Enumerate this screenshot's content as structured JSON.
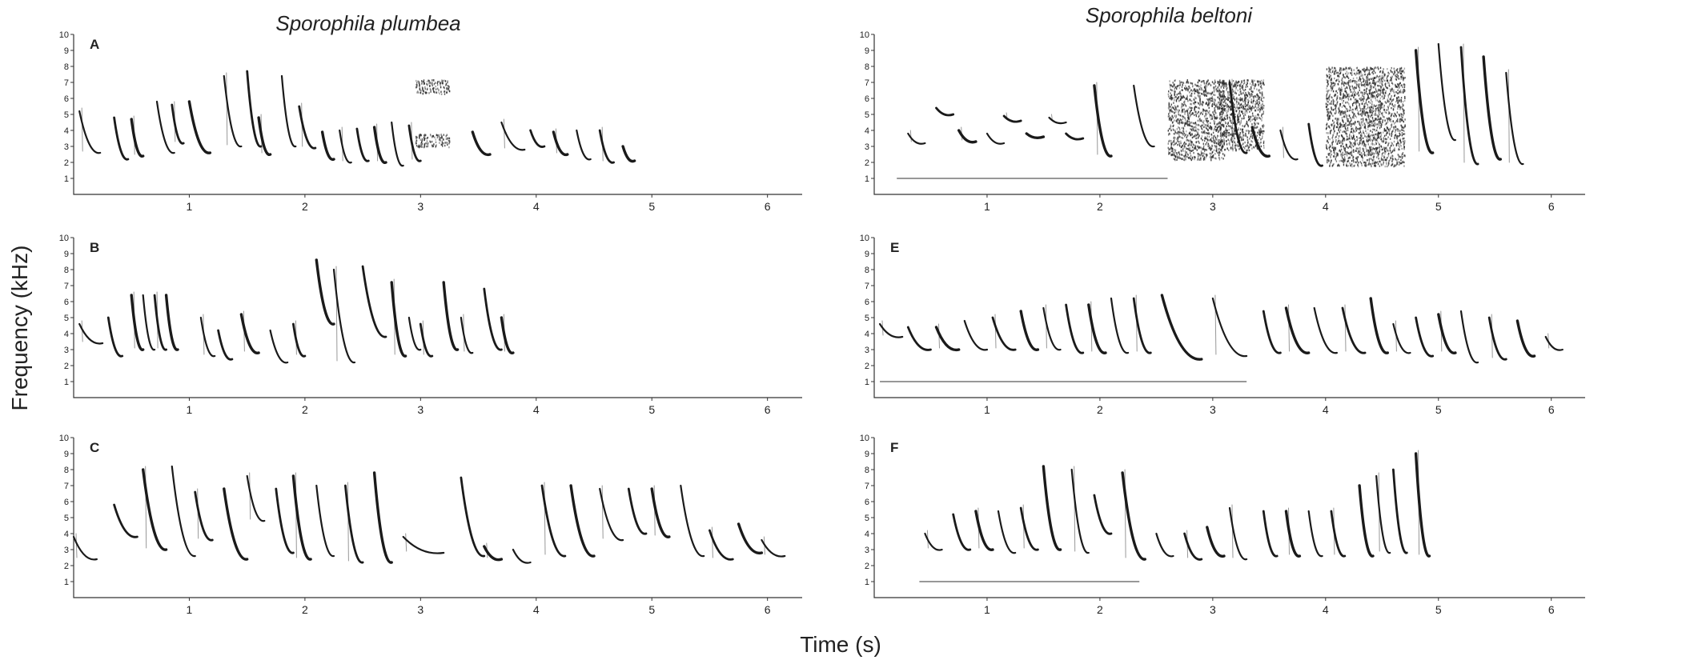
{
  "figure": {
    "columns": [
      {
        "title": "Sporophila plumbea"
      },
      {
        "title": "Sporophila beltoni"
      }
    ],
    "ylabel": "Frequency (kHz)",
    "xlabel": "Time (s)"
  },
  "chart_data": {
    "type": "spectrogram",
    "x_unit": "s",
    "y_unit": "kHz",
    "y_ticks": [
      "1",
      "2",
      "3",
      "4",
      "5",
      "6",
      "7",
      "8",
      "9",
      "10"
    ],
    "x_ticks": [
      "1",
      "2",
      "3",
      "4",
      "5",
      "6"
    ],
    "ylim": [
      0,
      10
    ],
    "xlim": [
      0,
      6.3
    ],
    "panels": [
      {
        "label": "A",
        "species": "Sporophila plumbea",
        "song_end_s": 4.85,
        "notes": [
          {
            "t": 0.05,
            "f0": 5.2,
            "f1": 2.6,
            "w": 0.18
          },
          {
            "t": 0.35,
            "f0": 4.8,
            "f1": 2.2,
            "w": 0.12
          },
          {
            "t": 0.5,
            "f0": 4.7,
            "f1": 2.4,
            "w": 0.1
          },
          {
            "t": 0.72,
            "f0": 5.8,
            "f1": 2.6,
            "w": 0.15
          },
          {
            "t": 0.85,
            "f0": 5.6,
            "f1": 3.2,
            "w": 0.1
          },
          {
            "t": 1.0,
            "f0": 5.8,
            "f1": 2.6,
            "w": 0.18
          },
          {
            "t": 1.3,
            "f0": 7.4,
            "f1": 3.0,
            "w": 0.15
          },
          {
            "t": 1.5,
            "f0": 7.7,
            "f1": 3.0,
            "w": 0.12
          },
          {
            "t": 1.6,
            "f0": 4.8,
            "f1": 2.5,
            "w": 0.1
          },
          {
            "t": 1.8,
            "f0": 7.4,
            "f1": 3.0,
            "w": 0.12
          },
          {
            "t": 1.95,
            "f0": 5.5,
            "f1": 2.9,
            "w": 0.14
          },
          {
            "t": 2.15,
            "f0": 3.9,
            "f1": 2.2,
            "w": 0.1
          },
          {
            "t": 2.3,
            "f0": 4.0,
            "f1": 2.0,
            "w": 0.1
          },
          {
            "t": 2.45,
            "f0": 4.1,
            "f1": 2.1,
            "w": 0.1
          },
          {
            "t": 2.6,
            "f0": 4.2,
            "f1": 2.0,
            "w": 0.1
          },
          {
            "t": 2.75,
            "f0": 4.5,
            "f1": 1.8,
            "w": 0.1
          },
          {
            "t": 2.9,
            "f0": 4.3,
            "f1": 2.1,
            "w": 0.1
          },
          {
            "t": 3.45,
            "f0": 3.9,
            "f1": 2.5,
            "w": 0.15
          },
          {
            "t": 3.7,
            "f0": 4.5,
            "f1": 2.8,
            "w": 0.2
          },
          {
            "t": 3.95,
            "f0": 4.0,
            "f1": 3.0,
            "w": 0.12
          },
          {
            "t": 4.15,
            "f0": 3.9,
            "f1": 2.5,
            "w": 0.12
          },
          {
            "t": 4.35,
            "f0": 4.0,
            "f1": 2.2,
            "w": 0.12
          },
          {
            "t": 4.55,
            "f0": 4.0,
            "f1": 2.0,
            "w": 0.12
          },
          {
            "t": 4.75,
            "f0": 3.0,
            "f1": 2.1,
            "w": 0.1
          }
        ]
      },
      {
        "label": "B",
        "species": "Sporophila plumbea",
        "song_end_s": 3.8,
        "notes": [
          {
            "t": 0.05,
            "f0": 4.6,
            "f1": 3.4,
            "w": 0.2
          },
          {
            "t": 0.3,
            "f0": 5.0,
            "f1": 2.6,
            "w": 0.12
          },
          {
            "t": 0.5,
            "f0": 6.4,
            "f1": 3.0,
            "w": 0.1
          },
          {
            "t": 0.6,
            "f0": 6.4,
            "f1": 3.0,
            "w": 0.1
          },
          {
            "t": 0.7,
            "f0": 6.4,
            "f1": 3.0,
            "w": 0.1
          },
          {
            "t": 0.8,
            "f0": 6.4,
            "f1": 3.0,
            "w": 0.1
          },
          {
            "t": 1.1,
            "f0": 5.0,
            "f1": 2.6,
            "w": 0.12
          },
          {
            "t": 1.25,
            "f0": 4.2,
            "f1": 2.4,
            "w": 0.12
          },
          {
            "t": 1.45,
            "f0": 5.2,
            "f1": 2.8,
            "w": 0.15
          },
          {
            "t": 1.7,
            "f0": 4.2,
            "f1": 2.2,
            "w": 0.15
          },
          {
            "t": 1.9,
            "f0": 4.6,
            "f1": 2.6,
            "w": 0.1
          },
          {
            "t": 2.1,
            "f0": 8.6,
            "f1": 4.6,
            "w": 0.15
          },
          {
            "t": 2.25,
            "f0": 8.0,
            "f1": 2.2,
            "w": 0.18
          },
          {
            "t": 2.5,
            "f0": 8.2,
            "f1": 3.8,
            "w": 0.2
          },
          {
            "t": 2.75,
            "f0": 7.2,
            "f1": 2.6,
            "w": 0.12
          },
          {
            "t": 2.9,
            "f0": 5.0,
            "f1": 3.0,
            "w": 0.1
          },
          {
            "t": 3.0,
            "f0": 4.6,
            "f1": 2.6,
            "w": 0.1
          },
          {
            "t": 3.2,
            "f0": 7.2,
            "f1": 3.0,
            "w": 0.12
          },
          {
            "t": 3.35,
            "f0": 5.0,
            "f1": 2.8,
            "w": 0.1
          },
          {
            "t": 3.55,
            "f0": 6.8,
            "f1": 3.0,
            "w": 0.15
          },
          {
            "t": 3.7,
            "f0": 5.0,
            "f1": 2.8,
            "w": 0.1
          }
        ]
      },
      {
        "label": "C",
        "species": "Sporophila plumbea",
        "song_end_s": 6.2,
        "notes": [
          {
            "t": 0.0,
            "f0": 3.8,
            "f1": 2.4,
            "w": 0.2
          },
          {
            "t": 0.35,
            "f0": 5.8,
            "f1": 3.8,
            "w": 0.2
          },
          {
            "t": 0.6,
            "f0": 8.0,
            "f1": 3.0,
            "w": 0.2
          },
          {
            "t": 0.85,
            "f0": 8.2,
            "f1": 2.6,
            "w": 0.2
          },
          {
            "t": 1.05,
            "f0": 6.6,
            "f1": 3.6,
            "w": 0.15
          },
          {
            "t": 1.3,
            "f0": 6.8,
            "f1": 2.4,
            "w": 0.2
          },
          {
            "t": 1.5,
            "f0": 7.6,
            "f1": 4.8,
            "w": 0.15
          },
          {
            "t": 1.75,
            "f0": 6.8,
            "f1": 2.8,
            "w": 0.15
          },
          {
            "t": 1.9,
            "f0": 7.6,
            "f1": 2.4,
            "w": 0.15
          },
          {
            "t": 2.1,
            "f0": 7.0,
            "f1": 2.6,
            "w": 0.15
          },
          {
            "t": 2.35,
            "f0": 7.0,
            "f1": 2.2,
            "w": 0.15
          },
          {
            "t": 2.6,
            "f0": 7.8,
            "f1": 2.2,
            "w": 0.15
          },
          {
            "t": 2.85,
            "f0": 3.8,
            "f1": 2.8,
            "w": 0.35
          },
          {
            "t": 3.35,
            "f0": 7.5,
            "f1": 2.6,
            "w": 0.2
          },
          {
            "t": 3.55,
            "f0": 3.2,
            "f1": 2.4,
            "w": 0.15
          },
          {
            "t": 3.8,
            "f0": 3.0,
            "f1": 2.2,
            "w": 0.15
          },
          {
            "t": 4.05,
            "f0": 7.0,
            "f1": 2.6,
            "w": 0.2
          },
          {
            "t": 4.3,
            "f0": 7.0,
            "f1": 2.6,
            "w": 0.2
          },
          {
            "t": 4.55,
            "f0": 6.8,
            "f1": 3.6,
            "w": 0.2
          },
          {
            "t": 4.8,
            "f0": 6.8,
            "f1": 4.0,
            "w": 0.15
          },
          {
            "t": 5.0,
            "f0": 6.8,
            "f1": 3.8,
            "w": 0.15
          },
          {
            "t": 5.25,
            "f0": 7.0,
            "f1": 2.6,
            "w": 0.2
          },
          {
            "t": 5.5,
            "f0": 4.2,
            "f1": 2.4,
            "w": 0.2
          },
          {
            "t": 5.75,
            "f0": 4.6,
            "f1": 2.8,
            "w": 0.2
          },
          {
            "t": 5.95,
            "f0": 3.6,
            "f1": 2.6,
            "w": 0.2
          }
        ]
      },
      {
        "label": "",
        "species": "Sporophila beltoni",
        "song_end_s": 5.75,
        "scale_bar_s": [
          0.2,
          2.6
        ],
        "notes": [
          {
            "t": 0.3,
            "f0": 3.8,
            "f1": 3.2,
            "w": 0.15
          },
          {
            "t": 0.55,
            "f0": 5.4,
            "f1": 5.0,
            "w": 0.15
          },
          {
            "t": 0.75,
            "f0": 4.0,
            "f1": 3.3,
            "w": 0.15
          },
          {
            "t": 1.0,
            "f0": 3.8,
            "f1": 3.2,
            "w": 0.15
          },
          {
            "t": 1.15,
            "f0": 4.9,
            "f1": 4.6,
            "w": 0.15
          },
          {
            "t": 1.35,
            "f0": 3.8,
            "f1": 3.6,
            "w": 0.15
          },
          {
            "t": 1.55,
            "f0": 4.8,
            "f1": 4.5,
            "w": 0.15
          },
          {
            "t": 1.7,
            "f0": 3.8,
            "f1": 3.5,
            "w": 0.15
          },
          {
            "t": 1.95,
            "f0": 6.8,
            "f1": 2.4,
            "w": 0.15
          },
          {
            "t": 2.3,
            "f0": 6.8,
            "f1": 3.0,
            "w": 0.18
          },
          {
            "t": 3.15,
            "f0": 7.0,
            "f1": 2.6,
            "w": 0.15
          },
          {
            "t": 3.35,
            "f0": 4.2,
            "f1": 2.4,
            "w": 0.15
          },
          {
            "t": 3.6,
            "f0": 4.0,
            "f1": 2.2,
            "w": 0.15
          },
          {
            "t": 3.85,
            "f0": 4.4,
            "f1": 1.8,
            "w": 0.12
          },
          {
            "t": 4.8,
            "f0": 9.0,
            "f1": 2.6,
            "w": 0.15
          },
          {
            "t": 5.0,
            "f0": 9.4,
            "f1": 3.4,
            "w": 0.15
          },
          {
            "t": 5.2,
            "f0": 9.2,
            "f1": 1.9,
            "w": 0.15
          },
          {
            "t": 5.4,
            "f0": 8.6,
            "f1": 2.2,
            "w": 0.15
          },
          {
            "t": 5.6,
            "f0": 7.6,
            "f1": 1.9,
            "w": 0.15
          }
        ]
      },
      {
        "label": "E",
        "species": "Sporophila beltoni",
        "song_end_s": 6.1,
        "scale_bar_s": [
          0.05,
          3.3
        ],
        "notes": [
          {
            "t": 0.05,
            "f0": 4.6,
            "f1": 3.8,
            "w": 0.2
          },
          {
            "t": 0.3,
            "f0": 4.4,
            "f1": 3.0,
            "w": 0.2
          },
          {
            "t": 0.55,
            "f0": 4.4,
            "f1": 3.0,
            "w": 0.2
          },
          {
            "t": 0.8,
            "f0": 4.8,
            "f1": 3.0,
            "w": 0.2
          },
          {
            "t": 1.05,
            "f0": 5.0,
            "f1": 3.0,
            "w": 0.2
          },
          {
            "t": 1.3,
            "f0": 5.4,
            "f1": 3.0,
            "w": 0.15
          },
          {
            "t": 1.5,
            "f0": 5.6,
            "f1": 3.0,
            "w": 0.15
          },
          {
            "t": 1.7,
            "f0": 5.8,
            "f1": 2.8,
            "w": 0.15
          },
          {
            "t": 1.9,
            "f0": 5.8,
            "f1": 2.8,
            "w": 0.15
          },
          {
            "t": 2.1,
            "f0": 6.2,
            "f1": 2.8,
            "w": 0.15
          },
          {
            "t": 2.3,
            "f0": 6.2,
            "f1": 2.8,
            "w": 0.15
          },
          {
            "t": 2.55,
            "f0": 6.4,
            "f1": 2.4,
            "w": 0.35
          },
          {
            "t": 3.0,
            "f0": 6.2,
            "f1": 2.6,
            "w": 0.3
          },
          {
            "t": 3.45,
            "f0": 5.4,
            "f1": 2.8,
            "w": 0.15
          },
          {
            "t": 3.65,
            "f0": 5.6,
            "f1": 2.8,
            "w": 0.2
          },
          {
            "t": 3.9,
            "f0": 5.6,
            "f1": 2.8,
            "w": 0.2
          },
          {
            "t": 4.15,
            "f0": 5.6,
            "f1": 2.8,
            "w": 0.2
          },
          {
            "t": 4.4,
            "f0": 6.2,
            "f1": 2.8,
            "w": 0.15
          },
          {
            "t": 4.6,
            "f0": 4.6,
            "f1": 2.8,
            "w": 0.15
          },
          {
            "t": 4.8,
            "f0": 5.0,
            "f1": 2.6,
            "w": 0.15
          },
          {
            "t": 5.0,
            "f0": 5.2,
            "f1": 2.8,
            "w": 0.15
          },
          {
            "t": 5.2,
            "f0": 5.4,
            "f1": 2.2,
            "w": 0.15
          },
          {
            "t": 5.45,
            "f0": 5.0,
            "f1": 2.4,
            "w": 0.15
          },
          {
            "t": 5.7,
            "f0": 4.8,
            "f1": 2.6,
            "w": 0.15
          },
          {
            "t": 5.95,
            "f0": 3.8,
            "f1": 3.0,
            "w": 0.15
          }
        ]
      },
      {
        "label": "F",
        "species": "Sporophila beltoni",
        "song_end_s": 5.0,
        "scale_bar_s": [
          0.4,
          2.35
        ],
        "notes": [
          {
            "t": 0.45,
            "f0": 4.0,
            "f1": 3.0,
            "w": 0.15
          },
          {
            "t": 0.7,
            "f0": 5.2,
            "f1": 3.0,
            "w": 0.15
          },
          {
            "t": 0.9,
            "f0": 5.4,
            "f1": 3.0,
            "w": 0.15
          },
          {
            "t": 1.1,
            "f0": 5.4,
            "f1": 2.8,
            "w": 0.15
          },
          {
            "t": 1.3,
            "f0": 5.6,
            "f1": 3.0,
            "w": 0.15
          },
          {
            "t": 1.5,
            "f0": 8.2,
            "f1": 3.0,
            "w": 0.15
          },
          {
            "t": 1.75,
            "f0": 8.0,
            "f1": 2.8,
            "w": 0.15
          },
          {
            "t": 1.95,
            "f0": 6.4,
            "f1": 4.0,
            "w": 0.15
          },
          {
            "t": 2.2,
            "f0": 7.8,
            "f1": 2.4,
            "w": 0.2
          },
          {
            "t": 2.5,
            "f0": 4.0,
            "f1": 2.6,
            "w": 0.15
          },
          {
            "t": 2.75,
            "f0": 4.0,
            "f1": 2.4,
            "w": 0.15
          },
          {
            "t": 2.95,
            "f0": 4.4,
            "f1": 2.6,
            "w": 0.15
          },
          {
            "t": 3.15,
            "f0": 5.6,
            "f1": 2.4,
            "w": 0.15
          },
          {
            "t": 3.45,
            "f0": 5.4,
            "f1": 2.6,
            "w": 0.12
          },
          {
            "t": 3.65,
            "f0": 5.4,
            "f1": 2.6,
            "w": 0.12
          },
          {
            "t": 3.85,
            "f0": 5.4,
            "f1": 2.6,
            "w": 0.12
          },
          {
            "t": 4.05,
            "f0": 5.4,
            "f1": 2.6,
            "w": 0.12
          },
          {
            "t": 4.3,
            "f0": 7.0,
            "f1": 2.6,
            "w": 0.12
          },
          {
            "t": 4.45,
            "f0": 7.6,
            "f1": 2.8,
            "w": 0.12
          },
          {
            "t": 4.6,
            "f0": 8.0,
            "f1": 2.8,
            "w": 0.12
          },
          {
            "t": 4.8,
            "f0": 9.0,
            "f1": 2.6,
            "w": 0.12
          }
        ]
      }
    ],
    "noise_blocks": [
      {
        "panel": 0,
        "t0": 2.95,
        "t1": 3.25,
        "f0": 6.3,
        "f1": 7.2
      },
      {
        "panel": 0,
        "t0": 2.95,
        "t1": 3.25,
        "f0": 3.0,
        "f1": 3.8
      },
      {
        "panel": 3,
        "t0": 2.6,
        "t1": 3.1,
        "f0": 2.2,
        "f1": 7.2
      },
      {
        "panel": 3,
        "t0": 3.05,
        "t1": 3.45,
        "f0": 2.8,
        "f1": 7.2
      },
      {
        "panel": 3,
        "t0": 4.0,
        "t1": 4.7,
        "f0": 1.8,
        "f1": 8.0
      }
    ]
  }
}
